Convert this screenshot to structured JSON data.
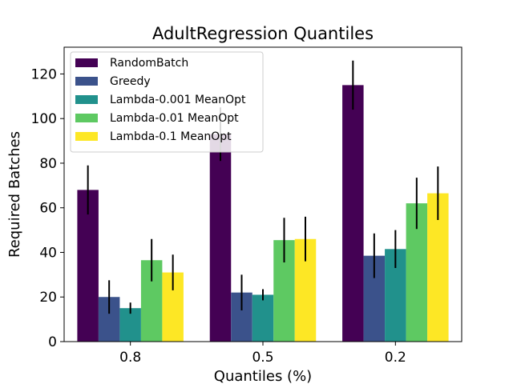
{
  "chart_data": {
    "type": "bar",
    "title": "AdultRegression Quantiles",
    "xlabel": "Quantiles (%)",
    "ylabel": "Required Batches",
    "categories": [
      "0.8",
      "0.5",
      "0.2"
    ],
    "ylim": [
      0,
      132
    ],
    "yticks": [
      0,
      20,
      40,
      60,
      80,
      100,
      120
    ],
    "ytick_labels": [
      "0",
      "20",
      "40",
      "60",
      "80",
      "100",
      "120"
    ],
    "legend_position": "top-left",
    "grid": false,
    "series": [
      {
        "name": "RandomBatch",
        "color": "#440154",
        "values": [
          68,
          93,
          115
        ],
        "errors": [
          11,
          12,
          11
        ]
      },
      {
        "name": "Greedy",
        "color": "#3b528b",
        "values": [
          20,
          22,
          38.5
        ],
        "errors": [
          7.5,
          8,
          10
        ]
      },
      {
        "name": "Lambda-0.001 MeanOpt",
        "color": "#21918c",
        "values": [
          15,
          21,
          41.5
        ],
        "errors": [
          2.5,
          2.5,
          8.5
        ]
      },
      {
        "name": "Lambda-0.01 MeanOpt",
        "color": "#5ec962",
        "values": [
          36.5,
          45.5,
          62
        ],
        "errors": [
          9.5,
          10,
          11.5
        ]
      },
      {
        "name": "Lambda-0.1 MeanOpt",
        "color": "#fde725",
        "values": [
          31,
          46,
          66.5
        ],
        "errors": [
          8,
          10,
          12
        ]
      }
    ]
  }
}
